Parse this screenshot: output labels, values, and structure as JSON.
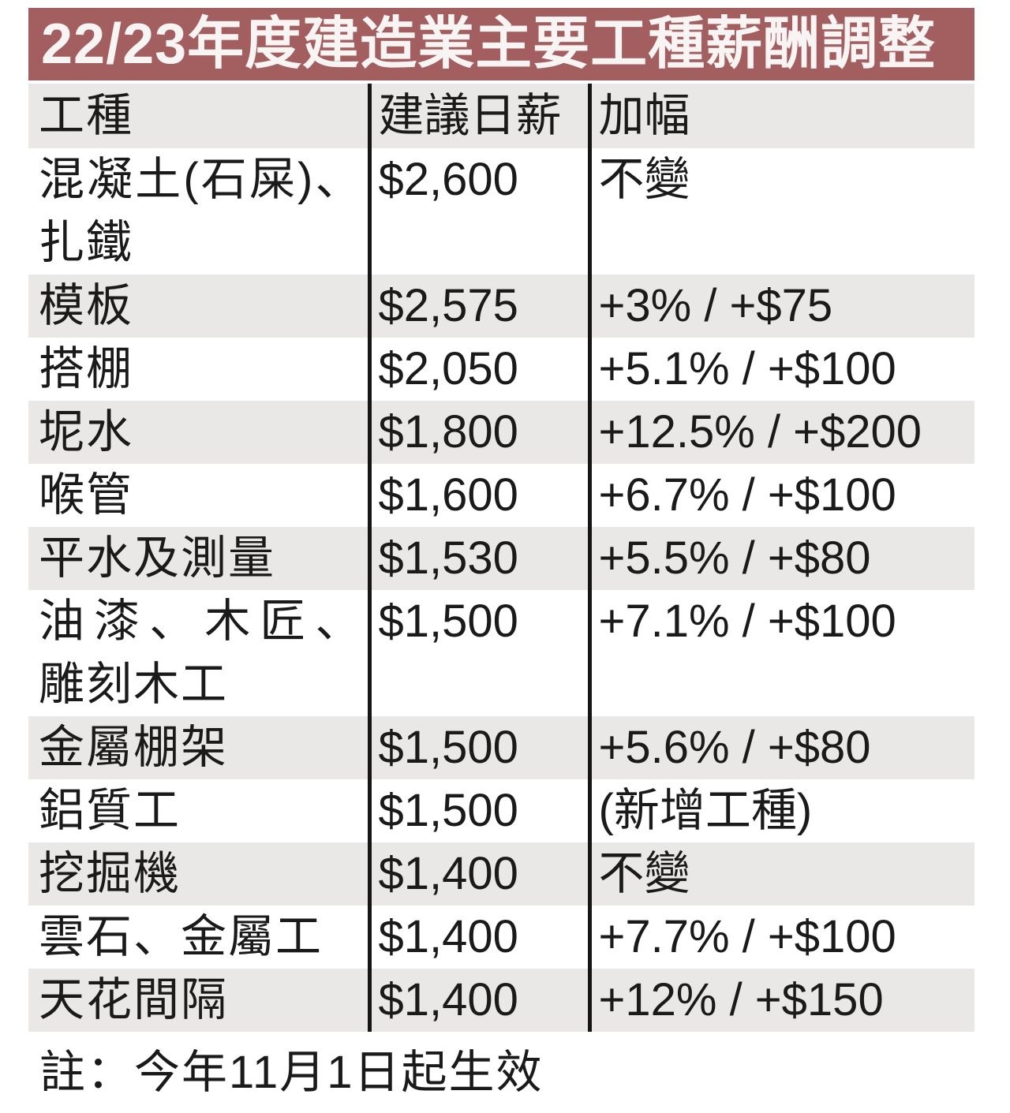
{
  "title": "22/23年度建造業主要工種薪酬調整",
  "footnote": "註：今年11月1日起生效",
  "colors": {
    "title_bar_bg": "#a35f5f",
    "title_text": "#f8f4f3",
    "row_shade_bg": "#e9e8e6",
    "rule_color": "#161616",
    "text_color": "#1a1a1a"
  },
  "chart_data": {
    "type": "table",
    "title": "22/23年度建造業主要工種薪酬調整",
    "columns": [
      "工種",
      "建議日薪",
      "加幅"
    ],
    "rows": [
      {
        "trade": "混凝土(石屎)、扎鐵",
        "wage": "$2,600",
        "change": "不變"
      },
      {
        "trade": "模板",
        "wage": "$2,575",
        "change": "+3% / +$75"
      },
      {
        "trade": "搭棚",
        "wage": "$2,050",
        "change": "+5.1% / +$100"
      },
      {
        "trade": "坭水",
        "wage": "$1,800",
        "change": "+12.5% / +$200"
      },
      {
        "trade": "喉管",
        "wage": "$1,600",
        "change": "+6.7% / +$100"
      },
      {
        "trade": "平水及測量",
        "wage": "$1,530",
        "change": "+5.5% / +$80"
      },
      {
        "trade": "油漆、木匠、雕刻木工",
        "wage": "$1,500",
        "change": "+7.1% / +$100"
      },
      {
        "trade": "金屬棚架",
        "wage": "$1,500",
        "change": "+5.6% / +$80"
      },
      {
        "trade": "鋁質工",
        "wage": "$1,500",
        "change": "(新增工種)"
      },
      {
        "trade": "挖掘機",
        "wage": "$1,400",
        "change": "不變"
      },
      {
        "trade": "雲石、金屬工",
        "wage": "$1,400",
        "change": "+7.7% / +$100"
      },
      {
        "trade": "天花間隔",
        "wage": "$1,400",
        "change": "+12% / +$150"
      }
    ],
    "notes": "註：今年11月1日起生效",
    "wage_values": [
      2600,
      2575,
      2050,
      1800,
      1600,
      1530,
      1500,
      1500,
      1500,
      1400,
      1400,
      1400
    ]
  }
}
